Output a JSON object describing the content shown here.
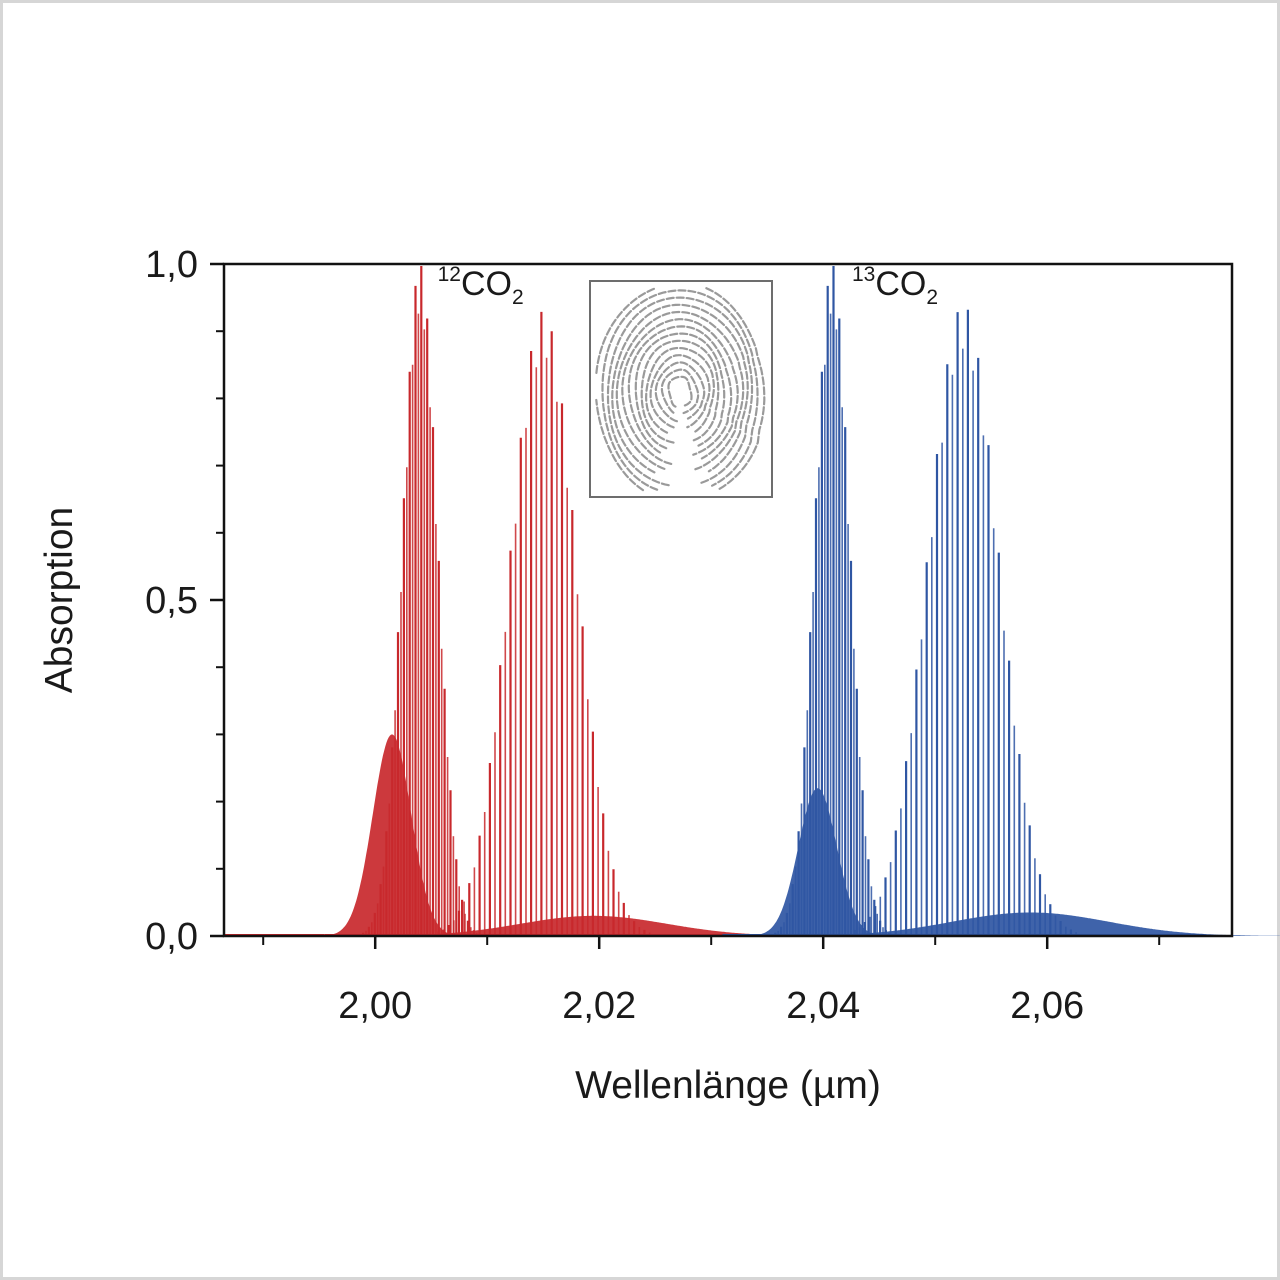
{
  "chart_data": {
    "type": "line",
    "title": "",
    "xlabel": "Wellenlänge (µm)",
    "ylabel": "Absorption",
    "xlim": [
      1.9865,
      2.0765
    ],
    "ylim": [
      0.0,
      1.0
    ],
    "x_ticks": [
      {
        "value": 2.0,
        "label": "2,00"
      },
      {
        "value": 2.02,
        "label": "2,02"
      },
      {
        "value": 2.04,
        "label": "2,04"
      },
      {
        "value": 2.06,
        "label": "2,06"
      }
    ],
    "y_ticks": [
      {
        "value": 0.0,
        "label": "0,0"
      },
      {
        "value": 0.5,
        "label": "0,5"
      },
      {
        "value": 1.0,
        "label": "1,0"
      }
    ],
    "grid": false,
    "legend": "none",
    "annotations": [
      {
        "id": "co2-12",
        "mass_number": "12",
        "formula": "CO",
        "subscript": "2",
        "x": 2.0045,
        "y": 0.96
      },
      {
        "id": "co2-13",
        "mass_number": "13",
        "formula": "CO",
        "subscript": "2",
        "x": 2.0415,
        "y": 0.96
      }
    ],
    "inset": {
      "content": "fingerprint-icon"
    },
    "series": [
      {
        "isotope": "12CO2",
        "color": "#c8282c",
        "bands": [
          {
            "center": 2.004,
            "peak": 1.0,
            "width": 0.0022,
            "spacing": 0.00052,
            "shoulder_center": 2.0015,
            "shoulder_peak": 0.3
          },
          {
            "center": 2.015,
            "peak": 0.93,
            "width": 0.0042,
            "spacing": 0.00092,
            "shoulder_center": 2.0195,
            "shoulder_peak": 0.03
          }
        ],
        "range": [
          1.9955,
          2.0365
        ]
      },
      {
        "isotope": "13CO2",
        "color": "#2f56a3",
        "bands": [
          {
            "center": 2.0408,
            "peak": 1.0,
            "width": 0.0022,
            "spacing": 0.00052,
            "shoulder_center": 2.0395,
            "shoulder_peak": 0.22
          },
          {
            "center": 2.0525,
            "peak": 0.94,
            "width": 0.0045,
            "spacing": 0.00092,
            "shoulder_center": 2.0585,
            "shoulder_peak": 0.035
          }
        ],
        "range": [
          2.031,
          2.074
        ]
      }
    ]
  }
}
